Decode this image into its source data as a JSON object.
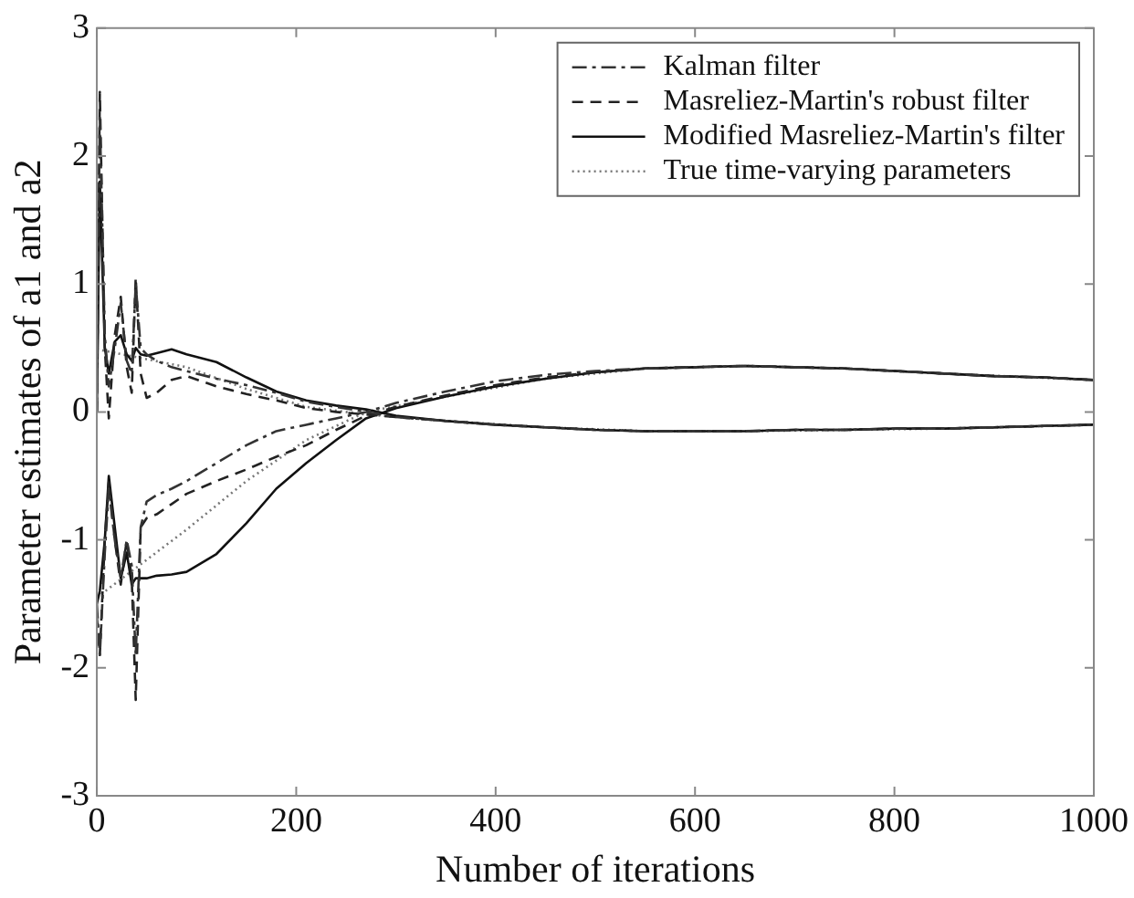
{
  "chart_data": {
    "type": "line",
    "xlabel": "Number of iterations",
    "ylabel": "Parameter estimates of a1 and a2",
    "xlim": [
      0,
      1000
    ],
    "ylim": [
      -3,
      3
    ],
    "xticks": [
      0,
      200,
      400,
      600,
      800,
      1000
    ],
    "yticks": [
      -3,
      -2,
      -1,
      0,
      1,
      2,
      3
    ],
    "grid": false,
    "legend": "top right",
    "marker": "none",
    "series": [
      {
        "name": "Kalman filter",
        "color": "#333333",
        "line_style": "dashdot",
        "x": [
          0,
          3,
          8,
          12,
          18,
          24,
          30,
          35,
          39,
          44,
          50,
          60,
          75,
          90,
          120,
          150,
          180,
          210,
          240,
          270,
          300,
          350,
          400,
          450,
          500,
          550,
          600,
          650,
          700,
          750,
          800,
          850,
          900,
          950,
          1000
        ],
        "values": [
          0.0,
          2.3,
          0.6,
          0.2,
          0.5,
          0.85,
          0.4,
          0.3,
          1.0,
          0.5,
          0.45,
          0.4,
          0.35,
          0.32,
          0.26,
          0.21,
          0.15,
          0.08,
          0.04,
          0.0,
          -0.04,
          -0.07,
          -0.1,
          -0.12,
          -0.14,
          -0.15,
          -0.15,
          -0.15,
          -0.14,
          -0.14,
          -0.13,
          -0.13,
          -0.12,
          -0.11,
          -0.1
        ]
      },
      {
        "color": "#333333",
        "line_style": "dashdot",
        "x": [
          0,
          3,
          8,
          12,
          18,
          24,
          30,
          35,
          39,
          44,
          50,
          60,
          75,
          90,
          120,
          150,
          180,
          210,
          240,
          270,
          300,
          350,
          400,
          450,
          500,
          550,
          600,
          650,
          700,
          750,
          800,
          850,
          900,
          950,
          1000
        ],
        "values": [
          -1.5,
          -1.9,
          -1.1,
          -0.6,
          -1.0,
          -1.3,
          -1.0,
          -1.2,
          -1.9,
          -0.9,
          -0.7,
          -0.65,
          -0.6,
          -0.54,
          -0.4,
          -0.26,
          -0.15,
          -0.1,
          -0.05,
          0.0,
          0.07,
          0.16,
          0.24,
          0.29,
          0.32,
          0.34,
          0.35,
          0.36,
          0.35,
          0.34,
          0.32,
          0.3,
          0.28,
          0.27,
          0.25
        ]
      },
      {
        "name": "Masreliez-Martin's robust filter",
        "color": "#222222",
        "line_style": "dashed",
        "x": [
          0,
          3,
          8,
          12,
          18,
          24,
          30,
          35,
          39,
          44,
          50,
          60,
          75,
          90,
          120,
          150,
          180,
          210,
          240,
          270,
          300,
          350,
          400,
          450,
          500,
          550,
          600,
          650,
          700,
          750,
          800,
          850,
          900,
          950,
          1000
        ],
        "values": [
          0.0,
          2.5,
          0.5,
          -0.05,
          0.6,
          0.9,
          0.35,
          0.15,
          1.05,
          0.3,
          0.11,
          0.15,
          0.25,
          0.28,
          0.2,
          0.14,
          0.09,
          0.03,
          0.0,
          -0.02,
          -0.04,
          -0.07,
          -0.1,
          -0.12,
          -0.14,
          -0.15,
          -0.15,
          -0.15,
          -0.14,
          -0.14,
          -0.13,
          -0.13,
          -0.12,
          -0.11,
          -0.1
        ]
      },
      {
        "color": "#222222",
        "line_style": "dashed",
        "x": [
          0,
          3,
          8,
          12,
          18,
          24,
          30,
          35,
          39,
          44,
          50,
          60,
          75,
          90,
          120,
          150,
          180,
          210,
          240,
          270,
          300,
          350,
          400,
          450,
          500,
          550,
          600,
          650,
          700,
          750,
          800,
          850,
          900,
          950,
          1000
        ],
        "values": [
          -1.6,
          -1.9,
          -1.0,
          -0.55,
          -1.0,
          -1.35,
          -1.0,
          -1.3,
          -2.25,
          -0.9,
          -0.83,
          -0.8,
          -0.72,
          -0.64,
          -0.54,
          -0.45,
          -0.35,
          -0.26,
          -0.14,
          -0.03,
          0.04,
          0.13,
          0.21,
          0.27,
          0.31,
          0.34,
          0.35,
          0.36,
          0.35,
          0.34,
          0.32,
          0.3,
          0.28,
          0.27,
          0.25
        ]
      },
      {
        "name": "Modified Masreliez-Martin's filter",
        "color": "#111111",
        "line_style": "solid",
        "x": [
          0,
          3,
          8,
          12,
          18,
          24,
          30,
          35,
          39,
          44,
          50,
          60,
          75,
          90,
          120,
          150,
          180,
          210,
          240,
          270,
          300,
          350,
          400,
          450,
          500,
          550,
          600,
          650,
          700,
          750,
          800,
          850,
          900,
          950,
          1000
        ],
        "values": [
          0.0,
          1.8,
          0.5,
          0.3,
          0.55,
          0.6,
          0.45,
          0.4,
          0.5,
          0.45,
          0.44,
          0.46,
          0.49,
          0.45,
          0.39,
          0.27,
          0.16,
          0.09,
          0.05,
          0.02,
          -0.03,
          -0.07,
          -0.1,
          -0.12,
          -0.14,
          -0.15,
          -0.15,
          -0.15,
          -0.14,
          -0.14,
          -0.13,
          -0.13,
          -0.12,
          -0.11,
          -0.1
        ]
      },
      {
        "color": "#111111",
        "line_style": "solid",
        "x": [
          0,
          3,
          8,
          12,
          18,
          24,
          30,
          35,
          39,
          44,
          50,
          60,
          75,
          90,
          120,
          150,
          180,
          210,
          240,
          270,
          300,
          350,
          400,
          450,
          500,
          550,
          600,
          650,
          700,
          750,
          800,
          850,
          900,
          950,
          1000
        ],
        "values": [
          -1.5,
          -1.4,
          -1.0,
          -0.5,
          -0.9,
          -1.3,
          -1.1,
          -1.35,
          -1.3,
          -1.3,
          -1.3,
          -1.28,
          -1.27,
          -1.25,
          -1.11,
          -0.87,
          -0.6,
          -0.4,
          -0.22,
          -0.05,
          0.03,
          0.12,
          0.2,
          0.26,
          0.31,
          0.34,
          0.35,
          0.36,
          0.35,
          0.34,
          0.32,
          0.3,
          0.28,
          0.27,
          0.25
        ]
      },
      {
        "name": "True time-varying parameters",
        "color": "#777777",
        "line_style": "dotted",
        "x": [
          0,
          90,
          150,
          210,
          270,
          350,
          450,
          550,
          650,
          750,
          850,
          1000
        ],
        "values": [
          0.49,
          0.35,
          0.18,
          0.04,
          -0.02,
          -0.07,
          -0.12,
          -0.15,
          -0.15,
          -0.14,
          -0.13,
          -0.1
        ]
      },
      {
        "color": "#777777",
        "line_style": "dotted",
        "x": [
          0,
          90,
          150,
          210,
          270,
          350,
          450,
          550,
          650,
          750,
          850,
          1000
        ],
        "values": [
          -1.45,
          -0.92,
          -0.54,
          -0.22,
          0.0,
          0.12,
          0.26,
          0.34,
          0.36,
          0.34,
          0.3,
          0.25
        ]
      }
    ]
  }
}
